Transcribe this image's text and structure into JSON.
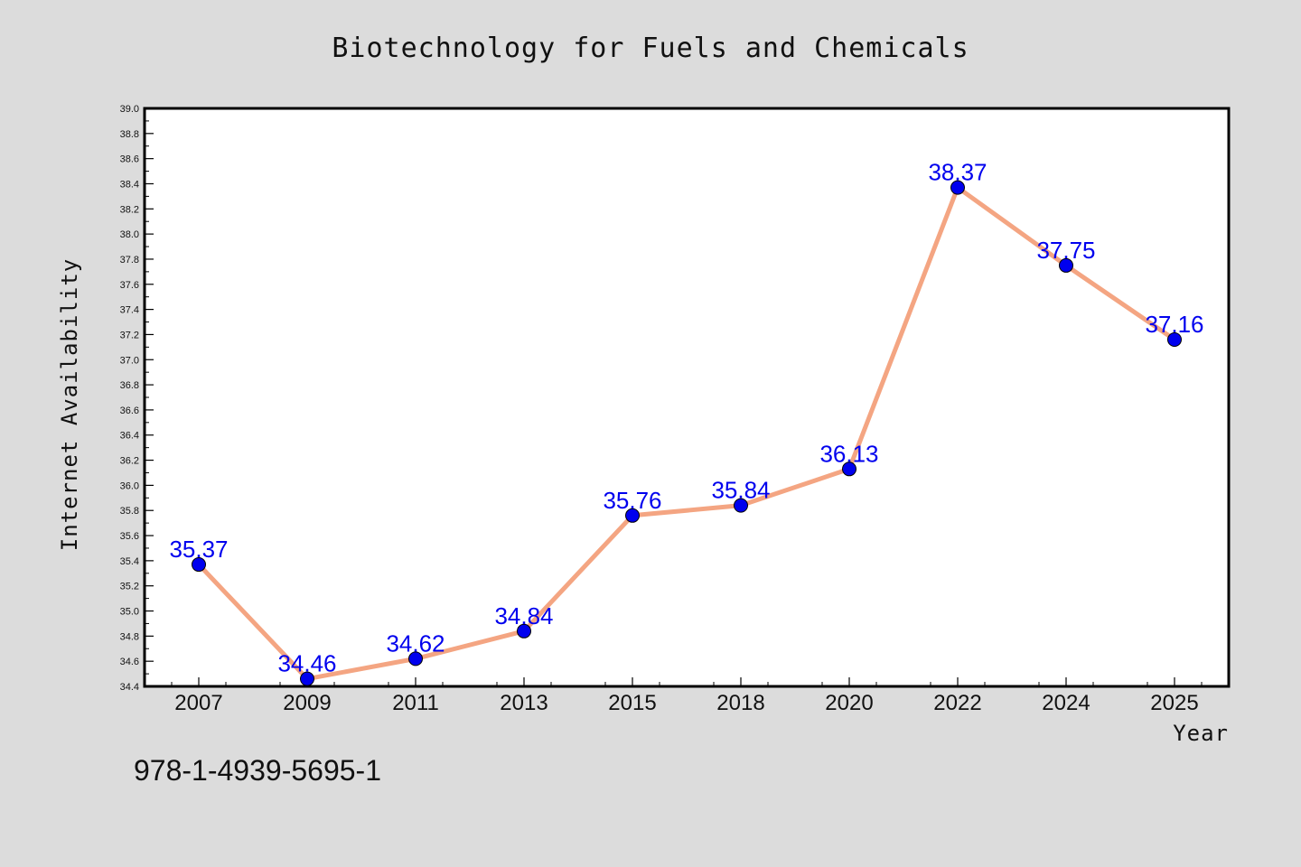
{
  "chart_data": {
    "type": "line",
    "title": "Biotechnology for Fuels and Chemicals",
    "xlabel": "Year",
    "ylabel": "Internet Availability",
    "categories": [
      "2007",
      "2009",
      "2011",
      "2013",
      "2015",
      "2018",
      "2020",
      "2022",
      "2024",
      "2025"
    ],
    "series": [
      {
        "values": [
          35.37,
          34.46,
          34.62,
          34.84,
          35.76,
          35.84,
          36.13,
          38.37,
          37.75,
          37.16
        ],
        "labels": [
          "35.37",
          "34.46",
          "34.62",
          "34.84",
          "35.76",
          "35.84",
          "36.13",
          "38.37",
          "37.75",
          "37.16"
        ]
      }
    ],
    "ylim": [
      34.4,
      39.0
    ],
    "yticks": [
      "34.4",
      "34.6",
      "34.8",
      "35.0",
      "35.2",
      "35.4",
      "35.6",
      "35.8",
      "36.0",
      "36.2",
      "36.4",
      "36.6",
      "36.8",
      "37.0",
      "37.2",
      "37.4",
      "37.6",
      "37.8",
      "38.0",
      "38.2",
      "38.4",
      "38.6",
      "38.8",
      "39.0"
    ],
    "grid": false,
    "legend": "none",
    "colors": {
      "line": "#f4a582",
      "marker": "#0000ee",
      "label": "#0000ee",
      "background": "#dcdcdc",
      "plot": "#ffffff"
    }
  },
  "footer": {
    "isbn": "978-1-4939-5695-1"
  }
}
